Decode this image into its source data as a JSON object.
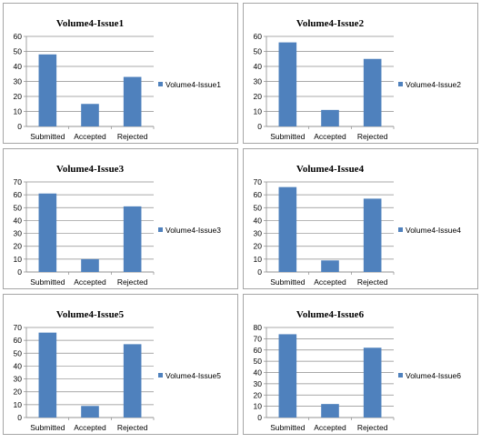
{
  "chart_data": [
    {
      "type": "bar",
      "title": "Volume4-Issue1",
      "categories": [
        "Submitted",
        "Accepted",
        "Rejected"
      ],
      "series": [
        {
          "name": "Volume4-Issue1",
          "values": [
            48,
            15,
            33
          ]
        }
      ],
      "ylim": [
        0,
        60
      ],
      "yticks": [
        0,
        10,
        20,
        30,
        40,
        50,
        60
      ],
      "grid": true,
      "legend": "right",
      "color": "#4f81bd"
    },
    {
      "type": "bar",
      "title": "Volume4-Issue2",
      "categories": [
        "Submitted",
        "Accepted",
        "Rejected"
      ],
      "series": [
        {
          "name": "Volume4-Issue2",
          "values": [
            56,
            11,
            45
          ]
        }
      ],
      "ylim": [
        0,
        60
      ],
      "yticks": [
        0,
        10,
        20,
        30,
        40,
        50,
        60
      ],
      "grid": true,
      "legend": "right",
      "color": "#4f81bd"
    },
    {
      "type": "bar",
      "title": "Volume4-Issue3",
      "categories": [
        "Submitted",
        "Accepted",
        "Rejected"
      ],
      "series": [
        {
          "name": "Volume4-Issue3",
          "values": [
            61,
            10,
            51
          ]
        }
      ],
      "ylim": [
        0,
        70
      ],
      "yticks": [
        0,
        10,
        20,
        30,
        40,
        50,
        60,
        70
      ],
      "grid": true,
      "legend": "right",
      "color": "#4f81bd"
    },
    {
      "type": "bar",
      "title": "Volume4-Issue4",
      "categories": [
        "Submitted",
        "Accepted",
        "Rejected"
      ],
      "series": [
        {
          "name": "Volume4-Issue4",
          "values": [
            66,
            9,
            57
          ]
        }
      ],
      "ylim": [
        0,
        70
      ],
      "yticks": [
        0,
        10,
        20,
        30,
        40,
        50,
        60,
        70
      ],
      "grid": true,
      "legend": "right",
      "color": "#4f81bd"
    },
    {
      "type": "bar",
      "title": "Volume4-Issue5",
      "categories": [
        "Submitted",
        "Accepted",
        "Rejected"
      ],
      "series": [
        {
          "name": "Volume4-Issue5",
          "values": [
            66,
            9,
            57
          ]
        }
      ],
      "ylim": [
        0,
        70
      ],
      "yticks": [
        0,
        10,
        20,
        30,
        40,
        50,
        60,
        70
      ],
      "grid": true,
      "legend": "right",
      "color": "#4f81bd"
    },
    {
      "type": "bar",
      "title": "Volume4-Issue6",
      "categories": [
        "Submitted",
        "Accepted",
        "Rejected"
      ],
      "series": [
        {
          "name": "Volume4-Issue6",
          "values": [
            74,
            12,
            62
          ]
        }
      ],
      "ylim": [
        0,
        80
      ],
      "yticks": [
        0,
        10,
        20,
        30,
        40,
        50,
        60,
        70,
        80
      ],
      "grid": true,
      "legend": "right",
      "color": "#4f81bd"
    }
  ]
}
